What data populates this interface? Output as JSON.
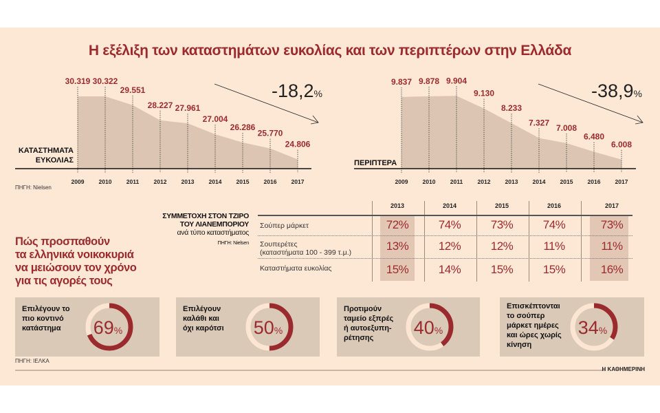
{
  "title": "Η εξέλιξη των καταστημάτων ευκολίας και των περιπτέρων στην Ελλάδα",
  "colors": {
    "accent": "#9b2a2e",
    "area": "#dcc6b3",
    "background": "#fde8d6",
    "card": "#dbc9b8"
  },
  "chart_data": [
    {
      "type": "area",
      "label": "ΚΑΤΑΣΤΗΜΑΤΑ ΕΥΚΟΛΙΑΣ",
      "x": [
        "2009",
        "2010",
        "2011",
        "2012",
        "2013",
        "2014",
        "2015",
        "2016",
        "2017"
      ],
      "values": [
        30319,
        30322,
        29551,
        28227,
        27961,
        27004,
        26286,
        25770,
        24806
      ],
      "value_labels": [
        "30.319",
        "30.322",
        "29.551",
        "28.227",
        "27.961",
        "27.004",
        "26.286",
        "25.770",
        "24.806"
      ],
      "ylim": [
        24000,
        30500
      ],
      "change": "-18,2",
      "change_unit": "%",
      "source": "ΠΗΓΗ: Nielsen"
    },
    {
      "type": "area",
      "label": "ΠΕΡΙΠΤΕΡΑ",
      "x": [
        "2009",
        "2010",
        "2011",
        "2012",
        "2013",
        "2014",
        "2015",
        "2016",
        "2017"
      ],
      "values": [
        9837,
        9878,
        9904,
        9130,
        8233,
        7327,
        7008,
        6480,
        6008
      ],
      "value_labels": [
        "9.837",
        "9.878",
        "9.904",
        "9.130",
        "8.233",
        "7.327",
        "7.008",
        "6.480",
        "6.008"
      ],
      "ylim": [
        5450,
        10000
      ],
      "change": "-38,9",
      "change_unit": "%"
    },
    {
      "type": "table",
      "title_lines": [
        "ΣΥΜΜΕΤΟΧΗ ΣΤΟΝ ΤΖΙΡΟ",
        "ΤΟΥ ΛΙΑΝΕΜΠΟΡΙΟΥ",
        "ανά τύπο καταστήματος"
      ],
      "source": "ΠΗΓΗ: Nielsen",
      "columns": [
        "2013",
        "2014",
        "2015",
        "2016",
        "2017"
      ],
      "rows": [
        {
          "label": "Σούπερ μάρκετ",
          "label2": "",
          "values": [
            "72%",
            "74%",
            "73%",
            "74%",
            "73%"
          ]
        },
        {
          "label": "Σουπερέτες",
          "label2": "(καταστήματα 100 - 399 τ.μ.)",
          "values": [
            "13%",
            "12%",
            "12%",
            "11%",
            "11%"
          ]
        },
        {
          "label": "Καταστήματα ευκολίας",
          "label2": "",
          "values": [
            "15%",
            "14%",
            "15%",
            "15%",
            "16%"
          ]
        }
      ]
    },
    {
      "type": "pie",
      "headline_lines": [
        "Πώς προσπαθούν",
        "τα ελληνικά νοικοκυριά",
        "να μειώσουν τον χρόνο",
        "για τις αγορές τους"
      ],
      "items": [
        {
          "text": [
            "Επιλέγουν το",
            "πιο κοντινό",
            "κατάστημα"
          ],
          "value": 69
        },
        {
          "text": [
            "Επιλέγουν",
            "καλάθι και",
            "όχι καρότσι"
          ],
          "value": 50
        },
        {
          "text": [
            "Προτιμούν",
            "ταμείο εξπρές",
            "ή αυτοεξυπη-",
            "ρέτησης"
          ],
          "value": 40
        },
        {
          "text": [
            "Επισκέπτονται",
            "το σούπερ",
            "μάρκετ ημέρες",
            "και ώρες χωρίς",
            "κίνηση"
          ],
          "value": 34
        }
      ],
      "unit": "%",
      "source": "ΠΗΓΗ: ΙΕΛΚΑ"
    }
  ],
  "footer": {
    "brand": "Η ΚΑΘΗΜΕΡΙΝΗ"
  }
}
